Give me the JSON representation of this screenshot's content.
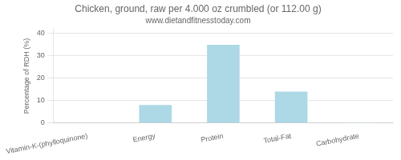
{
  "chart_data": {
    "type": "bar",
    "title": "Chicken, ground, raw per 4.000 oz crumbled (or 112.00 g)",
    "subtitle": "www.dietandfitnesstoday.com",
    "categories": [
      "Vitamin-K-(phylloquinone)",
      "Energy",
      "Protein",
      "Total-Fat",
      "Carbohydrate"
    ],
    "values": [
      0.2,
      8.0,
      35.0,
      14.0,
      0.1
    ],
    "color": "#add8e6",
    "ylabel": "Percentage of RDH (%)",
    "ylim": [
      0,
      42
    ],
    "yticks": [
      0,
      10,
      20,
      30,
      40
    ],
    "grid": true
  }
}
